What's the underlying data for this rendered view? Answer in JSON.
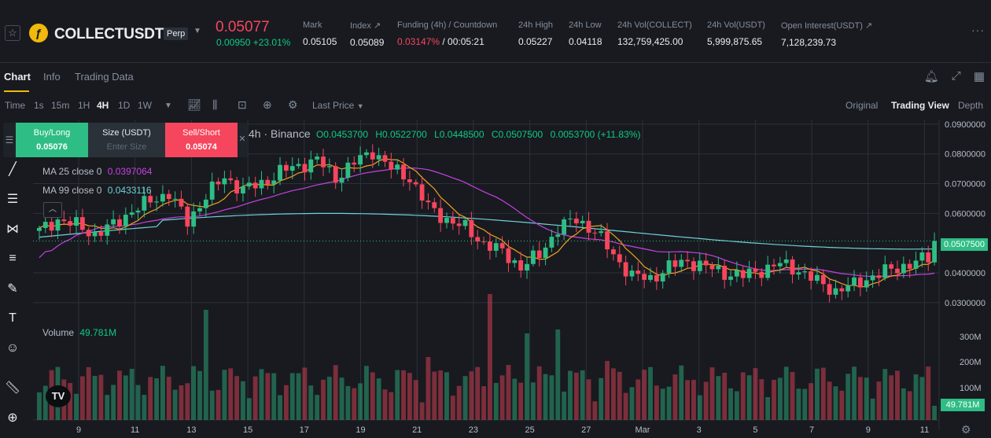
{
  "ticker": {
    "symbol": "COLLECTUSDT",
    "badge": "Perp",
    "last_price": "0.05077",
    "change": "0.00950 +23.01%",
    "stats": [
      {
        "label": "Mark",
        "value": "0.05105"
      },
      {
        "label": "Index ↗",
        "value": "0.05089"
      },
      {
        "label": "Funding (4h) / Countdown",
        "value_red": "0.03147%",
        "value_rest": " / 00:05:21"
      },
      {
        "label": "24h High",
        "value": "0.05227"
      },
      {
        "label": "24h Low",
        "value": "0.04118"
      },
      {
        "label": "24h Vol(COLLECT)",
        "value": "132,759,425.00"
      },
      {
        "label": "24h Vol(USDT)",
        "value": "5,999,875.65"
      },
      {
        "label": "Open Interest(USDT) ↗",
        "value": "7,128,239.73"
      }
    ]
  },
  "tabs": [
    "Chart",
    "Info",
    "Trading Data"
  ],
  "toolbar": {
    "intervals": [
      "Time",
      "1s",
      "15m",
      "1H",
      "4H",
      "1D",
      "1W"
    ],
    "active_interval": "4H",
    "price_type": "Last Price",
    "views": [
      "Original",
      "Trading View",
      "Depth"
    ],
    "active_view": "Trading View"
  },
  "order": {
    "buy_label": "Buy/Long",
    "buy_price": "0.05076",
    "size_label": "Size (USDT)",
    "size_placeholder": "Enter Size",
    "sell_label": "Sell/Short",
    "sell_price": "0.05074"
  },
  "legend": {
    "source": "4h · Binance",
    "o": "O0.0453700",
    "h": "H0.0522700",
    "l": "L0.0448500",
    "c": "C0.0507500",
    "chg": "0.0053700 (+11.83%)",
    "ma25_label": "MA 25 close 0",
    "ma25_value": "0.0397064",
    "ma99_label": "MA 99 close 0",
    "ma99_value": "0.0433116",
    "volume_label": "Volume",
    "volume_value": "49.781M"
  },
  "price_tag": "0.0507500",
  "volume_tag": "49.781M",
  "chart_data": {
    "type": "candlestick",
    "interval": "4H",
    "y_axis": [
      "0.0900000",
      "0.0800000",
      "0.0700000",
      "0.0600000",
      "0.0400000",
      "0.0300000"
    ],
    "ylim": [
      0.026,
      0.0905
    ],
    "x_axis": [
      "9",
      "11",
      "13",
      "15",
      "17",
      "19",
      "21",
      "23",
      "25",
      "27",
      "Mar",
      "3",
      "5",
      "7",
      "9",
      "11"
    ],
    "volume_axis": [
      "300M",
      "200M",
      "100M"
    ],
    "colors": {
      "up": "#2ebd85",
      "down": "#f6465d",
      "ma25": "#f0a020",
      "ma99": "#c642e1",
      "ma_long": "#6fd1d8"
    },
    "close_anchors": [
      [
        0,
        0.054
      ],
      [
        3,
        0.058
      ],
      [
        6,
        0.056
      ],
      [
        9,
        0.053
      ],
      [
        12,
        0.056
      ],
      [
        15,
        0.061
      ],
      [
        18,
        0.064
      ],
      [
        21,
        0.067
      ],
      [
        24,
        0.057
      ],
      [
        27,
        0.066
      ],
      [
        30,
        0.072
      ],
      [
        33,
        0.068
      ],
      [
        36,
        0.07
      ],
      [
        39,
        0.074
      ],
      [
        42,
        0.076
      ],
      [
        45,
        0.078
      ],
      [
        48,
        0.072
      ],
      [
        51,
        0.077
      ],
      [
        54,
        0.081
      ],
      [
        57,
        0.075
      ],
      [
        60,
        0.072
      ],
      [
        63,
        0.062
      ],
      [
        66,
        0.058
      ],
      [
        69,
        0.055
      ],
      [
        72,
        0.05
      ],
      [
        75,
        0.047
      ],
      [
        78,
        0.042
      ],
      [
        81,
        0.046
      ],
      [
        84,
        0.055
      ],
      [
        87,
        0.058
      ],
      [
        90,
        0.054
      ],
      [
        93,
        0.046
      ],
      [
        96,
        0.039
      ],
      [
        99,
        0.038
      ],
      [
        102,
        0.042
      ],
      [
        105,
        0.044
      ],
      [
        108,
        0.042
      ],
      [
        111,
        0.04
      ],
      [
        114,
        0.039
      ],
      [
        117,
        0.041
      ],
      [
        120,
        0.043
      ],
      [
        123,
        0.041
      ],
      [
        126,
        0.037
      ],
      [
        129,
        0.034
      ],
      [
        132,
        0.036
      ],
      [
        135,
        0.039
      ],
      [
        138,
        0.041
      ],
      [
        141,
        0.043
      ],
      [
        144,
        0.045
      ],
      [
        145,
        0.0507
      ]
    ],
    "candle_count": 146
  }
}
